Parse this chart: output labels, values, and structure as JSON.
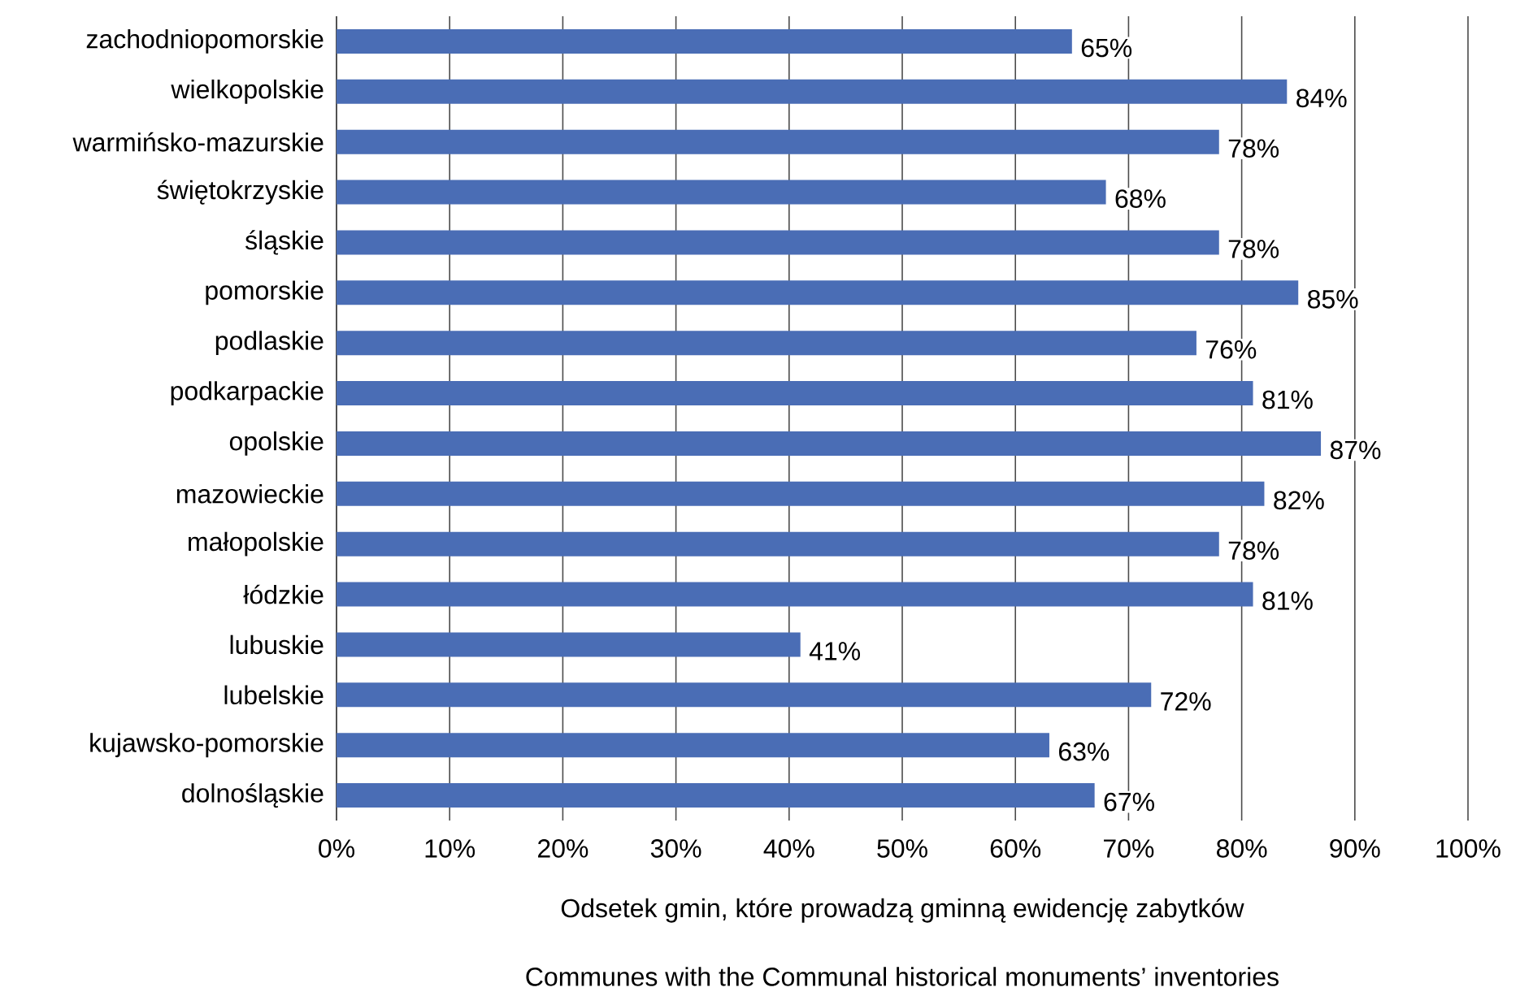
{
  "chart_data": {
    "type": "bar",
    "orientation": "horizontal",
    "categories": [
      "zachodniopomorskie",
      "wielkopolskie",
      "warmińsko-mazurskie",
      "świętokrzyskie",
      "śląskie",
      "pomorskie",
      "podlaskie",
      "podkarpackie",
      "opolskie",
      "mazowieckie",
      "małopolskie",
      "łódzkie",
      "lubuskie",
      "lubelskie",
      "kujawsko-pomorskie",
      "dolnośląskie"
    ],
    "values": [
      65,
      84,
      78,
      68,
      78,
      85,
      76,
      81,
      87,
      82,
      78,
      81,
      41,
      72,
      63,
      67
    ],
    "value_labels": [
      "65%",
      "84%",
      "78%",
      "68%",
      "78%",
      "85%",
      "76%",
      "81%",
      "87%",
      "82%",
      "78%",
      "81%",
      "41%",
      "72%",
      "63%",
      "67%"
    ],
    "color": "#4a6db5",
    "xlim": [
      0,
      100
    ],
    "xticks": [
      {
        "value": 0,
        "label": "0%"
      },
      {
        "value": 10,
        "label": "10%"
      },
      {
        "value": 20,
        "label": "20%"
      },
      {
        "value": 30,
        "label": "30%"
      },
      {
        "value": 40,
        "label": "40%"
      },
      {
        "value": 50,
        "label": "50%"
      },
      {
        "value": 60,
        "label": "60%"
      },
      {
        "value": 70,
        "label": "70%"
      },
      {
        "value": 80,
        "label": "80%"
      },
      {
        "value": 90,
        "label": "90%"
      },
      {
        "value": 100,
        "label": "100%"
      }
    ],
    "grid": "x",
    "xlabel": "Odsetek gmin, które prowadzą gminną ewidencję zabytków",
    "annotations": [
      "Communes with the Communal historical monuments’ inventories"
    ]
  }
}
